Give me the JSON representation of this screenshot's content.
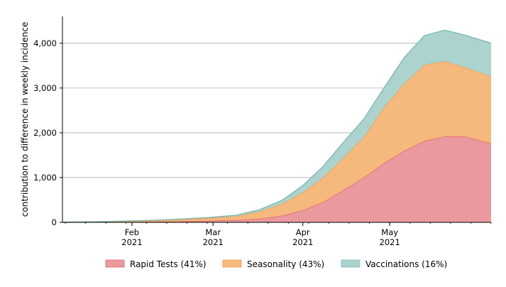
{
  "chart_data": {
    "type": "area",
    "stacked": true,
    "title": "",
    "xlabel": "",
    "ylabel": "contribution to difference in weekly incidence",
    "x_type": "date",
    "x_range": [
      "2021-01-08",
      "2021-06-05"
    ],
    "ylim": [
      0,
      4600
    ],
    "y_ticks": [
      0,
      1000,
      2000,
      3000,
      4000
    ],
    "y_tick_labels": [
      "0",
      "1,000",
      "2,000",
      "3,000",
      "4,000"
    ],
    "x_ticks": [
      {
        "date": "2021-02-01",
        "month": "Feb",
        "year": "2021"
      },
      {
        "date": "2021-03-01",
        "month": "Mar",
        "year": "2021"
      },
      {
        "date": "2021-04-01",
        "month": "Apr",
        "year": "2021"
      },
      {
        "date": "2021-05-01",
        "month": "May",
        "year": "2021"
      }
    ],
    "grid": {
      "y": true,
      "x": false
    },
    "legend_position": "bottom",
    "x": [
      "2021-01-08",
      "2021-01-18",
      "2021-01-28",
      "2021-02-07",
      "2021-02-17",
      "2021-02-27",
      "2021-03-09",
      "2021-03-17",
      "2021-03-25",
      "2021-04-01",
      "2021-04-08",
      "2021-04-15",
      "2021-04-22",
      "2021-04-29",
      "2021-05-06",
      "2021-05-13",
      "2021-05-20",
      "2021-05-27",
      "2021-06-05"
    ],
    "series": [
      {
        "name": "Rapid Tests (41%)",
        "color": "#ea9a9e",
        "line_color": "#e8645f",
        "values": [
          2,
          5,
          10,
          15,
          22,
          35,
          50,
          80,
          150,
          270,
          450,
          720,
          1000,
          1320,
          1600,
          1820,
          1920,
          1920,
          1760
        ]
      },
      {
        "name": "Seasonality (43%)",
        "color": "#f5b97d",
        "line_color": "#ea9f52",
        "values": [
          3,
          6,
          15,
          25,
          40,
          60,
          90,
          160,
          270,
          400,
          550,
          720,
          900,
          1250,
          1500,
          1700,
          1680,
          1540,
          1500
        ]
      },
      {
        "name": "Vaccinations (16%)",
        "color": "#acd3cd",
        "line_color": "#7fb9b1",
        "values": [
          0,
          0,
          2,
          5,
          8,
          12,
          20,
          40,
          80,
          150,
          250,
          350,
          400,
          430,
          580,
          650,
          690,
          720,
          740
        ]
      }
    ]
  }
}
